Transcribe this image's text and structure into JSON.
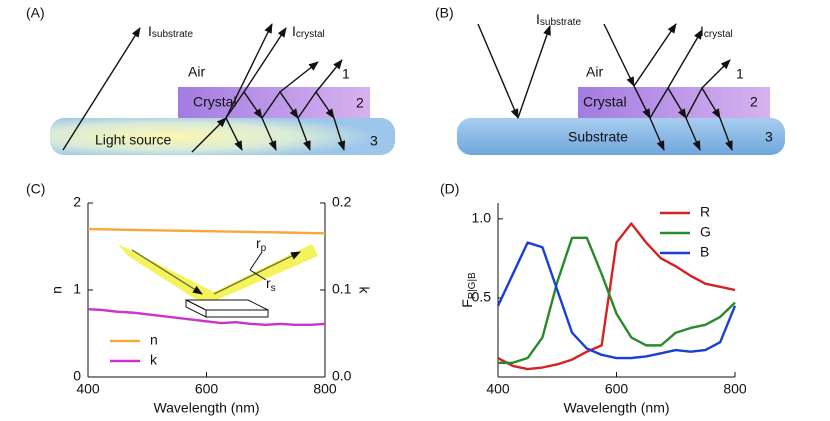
{
  "panel_labels": [
    "(A)",
    "(B)",
    "(C)",
    "(D)"
  ],
  "diagram_a": {
    "air": "Air",
    "crystal": "Crystal",
    "light_source": "Light source",
    "layers": [
      "1",
      "2",
      "3"
    ],
    "i_substrate": {
      "main": "I",
      "sub": "substrate"
    },
    "i_crystal": {
      "main": "I",
      "sub": "crystal"
    }
  },
  "diagram_b": {
    "air": "Air",
    "crystal": "Crystal",
    "substrate": "Substrate",
    "layers": [
      "1",
      "2",
      "3"
    ],
    "i_substrate": {
      "main": "I",
      "sub": "substrate"
    },
    "i_crystal": {
      "main": "I",
      "sub": "crystal"
    }
  },
  "chart_data": [
    {
      "type": "line",
      "xlabel": "Wavelength (nm)",
      "ylabel": "n",
      "y2label": "k",
      "x": [
        400,
        425,
        450,
        475,
        500,
        525,
        550,
        575,
        600,
        625,
        650,
        675,
        700,
        725,
        750,
        775,
        800
      ],
      "xlim": [
        400,
        800
      ],
      "xticks": [
        400,
        600,
        800
      ],
      "ylim": [
        0,
        2
      ],
      "yticks": [
        0,
        1,
        2
      ],
      "y2lim": [
        0,
        0.2
      ],
      "y2ticks": [
        {
          "value": 0,
          "label": "0.0"
        },
        0.1,
        0.2
      ],
      "legend": "lower left",
      "annotations": [
        {
          "main": "r",
          "sub": "p"
        },
        {
          "main": "r",
          "sub": "s"
        }
      ],
      "series": [
        {
          "name": "n",
          "color": "#f5a83c",
          "values": [
            1.7,
            1.697,
            1.694,
            1.691,
            1.688,
            1.685,
            1.682,
            1.679,
            1.676,
            1.673,
            1.67,
            1.667,
            1.664,
            1.661,
            1.658,
            1.655,
            1.652
          ]
        },
        {
          "name": "k",
          "color": "#cc33cc",
          "axis": "y2",
          "values": [
            0.078,
            0.077,
            0.075,
            0.074,
            0.072,
            0.07,
            0.068,
            0.066,
            0.064,
            0.062,
            0.063,
            0.061,
            0.06,
            0.061,
            0.06,
            0.06,
            0.061
          ]
        }
      ]
    },
    {
      "type": "line",
      "xlabel": "Wavelength (nm)",
      "ylabel": {
        "main": "F",
        "sub": "R|G|B"
      },
      "x": [
        400,
        425,
        450,
        475,
        500,
        525,
        550,
        575,
        600,
        625,
        650,
        675,
        700,
        725,
        750,
        775,
        800
      ],
      "xlim": [
        400,
        800
      ],
      "xticks": [
        400,
        600,
        800
      ],
      "ylim": [
        0,
        1.1
      ],
      "yticks": [
        0.5,
        {
          "value": 1,
          "label": "1.0"
        }
      ],
      "legend": "upper right",
      "series": [
        {
          "name": "R",
          "color": "#d42222",
          "values": [
            0.12,
            0.07,
            0.05,
            0.06,
            0.08,
            0.11,
            0.16,
            0.2,
            0.85,
            0.97,
            0.85,
            0.75,
            0.7,
            0.64,
            0.59,
            0.57,
            0.55
          ]
        },
        {
          "name": "G",
          "color": "#2a8a2a",
          "values": [
            0.09,
            0.09,
            0.12,
            0.25,
            0.6,
            0.88,
            0.88,
            0.65,
            0.4,
            0.25,
            0.2,
            0.2,
            0.28,
            0.31,
            0.33,
            0.38,
            0.47
          ]
        },
        {
          "name": "B",
          "color": "#1a3fd1",
          "values": [
            0.45,
            0.65,
            0.85,
            0.82,
            0.55,
            0.28,
            0.18,
            0.14,
            0.12,
            0.12,
            0.13,
            0.15,
            0.17,
            0.16,
            0.17,
            0.22,
            0.45
          ]
        }
      ]
    }
  ]
}
